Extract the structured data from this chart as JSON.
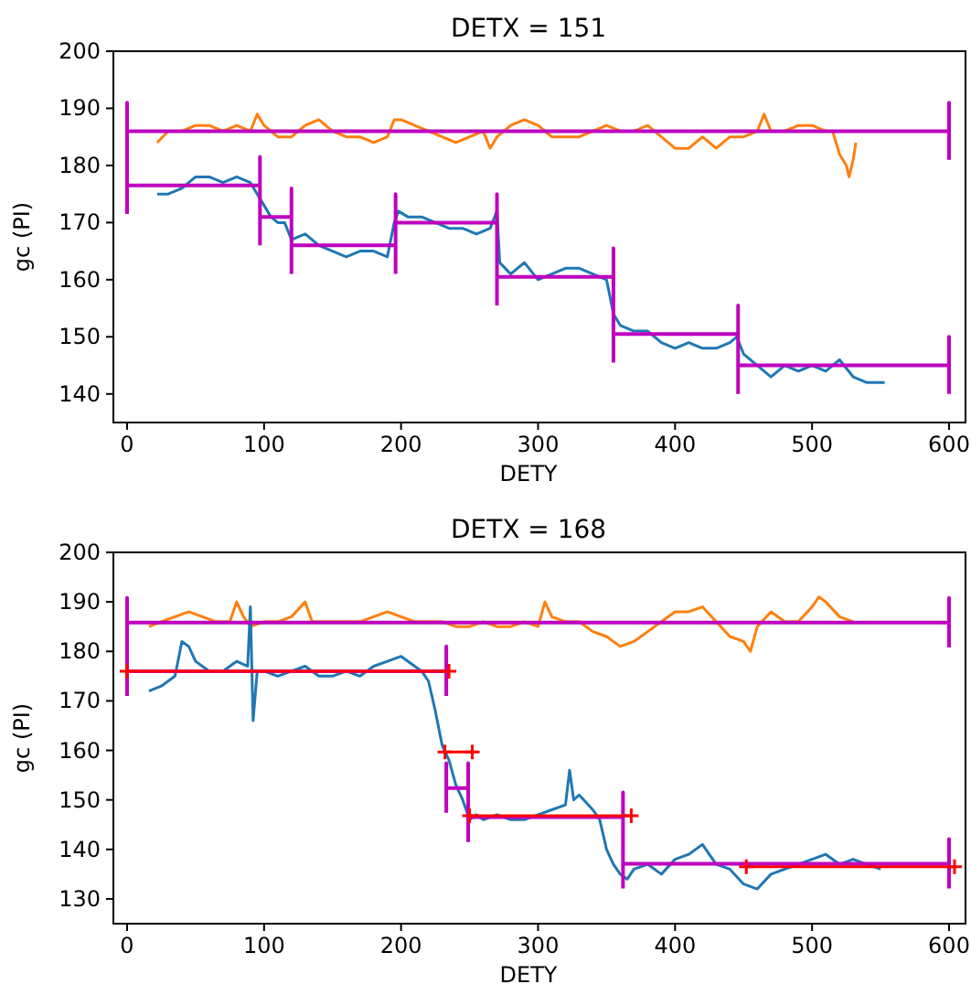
{
  "chart_data": [
    {
      "type": "line",
      "title": "DETX = 151",
      "xlabel": "DETY",
      "ylabel": "gc (PI)",
      "xlim": [
        -10,
        612
      ],
      "ylim": [
        135,
        200
      ],
      "xticks": [
        0,
        100,
        200,
        300,
        400,
        500,
        600
      ],
      "yticks": [
        140,
        150,
        160,
        170,
        180,
        190,
        200
      ],
      "marker": "none",
      "series": [
        {
          "color": "#ff7f0e",
          "x": [
            22,
            30,
            40,
            50,
            60,
            70,
            80,
            90,
            95,
            100,
            110,
            120,
            130,
            140,
            150,
            160,
            170,
            180,
            190,
            195,
            200,
            210,
            220,
            230,
            240,
            250,
            260,
            265,
            270,
            280,
            290,
            300,
            310,
            320,
            330,
            340,
            350,
            360,
            370,
            380,
            390,
            400,
            410,
            420,
            430,
            440,
            450,
            460,
            465,
            470,
            480,
            490,
            500,
            510,
            515,
            520,
            525,
            527,
            530,
            532
          ],
          "values": [
            184,
            186,
            186,
            187,
            187,
            186,
            187,
            186,
            189,
            187,
            185,
            185,
            187,
            188,
            186,
            185,
            185,
            184,
            185,
            188,
            188,
            187,
            186,
            185,
            184,
            185,
            186,
            183,
            185,
            187,
            188,
            187,
            185,
            185,
            185,
            186,
            187,
            186,
            186,
            187,
            185,
            183,
            183,
            185,
            183,
            185,
            185,
            186,
            189,
            186,
            186,
            187,
            187,
            186,
            186,
            182,
            180,
            178,
            181,
            184
          ]
        },
        {
          "color": "#1f77b4",
          "x": [
            22,
            30,
            40,
            50,
            60,
            70,
            80,
            90,
            95,
            100,
            105,
            110,
            115,
            120,
            130,
            140,
            150,
            160,
            170,
            180,
            190,
            195,
            198,
            205,
            215,
            225,
            235,
            245,
            255,
            265,
            270,
            272,
            280,
            290,
            300,
            310,
            320,
            330,
            340,
            350,
            355,
            360,
            370,
            380,
            390,
            400,
            410,
            420,
            430,
            440,
            445,
            450,
            460,
            470,
            480,
            490,
            500,
            510,
            520,
            530,
            540,
            553
          ],
          "values": [
            175,
            175,
            176,
            178,
            178,
            177,
            178,
            177,
            175,
            173,
            171,
            170,
            170,
            167,
            168,
            166,
            165,
            164,
            165,
            165,
            164,
            170,
            172,
            171,
            171,
            170,
            169,
            169,
            168,
            169,
            172,
            163,
            161,
            163,
            160,
            161,
            162,
            162,
            161,
            160,
            154,
            152,
            151,
            151,
            149,
            148,
            149,
            148,
            148,
            149,
            150,
            147,
            145,
            143,
            145,
            144,
            145,
            144,
            146,
            143,
            142,
            142
          ]
        },
        {
          "color": "#bf00bf",
          "x": [
            0,
            0,
            0,
            600,
            600,
            600,
            null,
            0,
            0,
            0,
            97,
            97,
            97,
            null,
            97,
            97,
            97,
            120,
            120,
            120,
            null,
            120,
            120,
            120,
            196,
            196,
            196,
            null,
            196,
            196,
            196,
            270,
            270,
            270,
            null,
            270,
            270,
            270,
            355,
            355,
            355,
            null,
            355,
            355,
            355,
            446,
            446,
            446,
            null,
            446,
            446,
            446,
            600,
            600,
            600
          ],
          "values": [
            181,
            191,
            186,
            186,
            191,
            181,
            null,
            171.5,
            181.5,
            176.5,
            176.5,
            181.5,
            171.5,
            null,
            166,
            176,
            171,
            171,
            176,
            166,
            null,
            161,
            171,
            166,
            166,
            171,
            161,
            null,
            165,
            175,
            170,
            170,
            175,
            165,
            null,
            155.5,
            165.5,
            160.5,
            160.5,
            165.5,
            155.5,
            null,
            145.5,
            155.5,
            150.5,
            150.5,
            155.5,
            145.5,
            null,
            140,
            150,
            145,
            145,
            150,
            140
          ]
        }
      ]
    },
    {
      "type": "line",
      "title": "DETX = 168",
      "xlabel": "DETY",
      "ylabel": "gc (PI)",
      "xlim": [
        -10,
        612
      ],
      "ylim": [
        125,
        200
      ],
      "xticks": [
        0,
        100,
        200,
        300,
        400,
        500,
        600
      ],
      "yticks": [
        130,
        140,
        150,
        160,
        170,
        180,
        190,
        200
      ],
      "marker": "none",
      "series": [
        {
          "color": "#ff7f0e",
          "x": [
            16,
            25,
            35,
            45,
            55,
            65,
            75,
            80,
            85,
            90,
            100,
            110,
            120,
            130,
            135,
            140,
            150,
            160,
            170,
            180,
            190,
            200,
            210,
            220,
            230,
            240,
            250,
            260,
            270,
            280,
            290,
            300,
            305,
            310,
            320,
            330,
            340,
            350,
            360,
            370,
            380,
            390,
            400,
            410,
            420,
            430,
            440,
            450,
            455,
            460,
            470,
            480,
            490,
            500,
            505,
            510,
            520,
            530
          ],
          "values": [
            185,
            186,
            187,
            188,
            187,
            186,
            186,
            190,
            187,
            185,
            186,
            186,
            187,
            190,
            186,
            186,
            186,
            186,
            186,
            187,
            188,
            187,
            186,
            186,
            186,
            185,
            185,
            186,
            185,
            185,
            186,
            185,
            190,
            187,
            186,
            186,
            184,
            183,
            181,
            182,
            184,
            186,
            188,
            188,
            189,
            186,
            183,
            182,
            180,
            185,
            188,
            186,
            186,
            189,
            191,
            190,
            187,
            186
          ]
        },
        {
          "color": "#1f77b4",
          "x": [
            16,
            25,
            35,
            40,
            45,
            50,
            60,
            70,
            80,
            88,
            90,
            92,
            95,
            100,
            110,
            120,
            130,
            140,
            150,
            160,
            170,
            180,
            190,
            200,
            210,
            215,
            220,
            225,
            230,
            235,
            240,
            245,
            250,
            255,
            260,
            270,
            280,
            290,
            300,
            310,
            320,
            323,
            326,
            330,
            340,
            345,
            350,
            355,
            360,
            365,
            370,
            380,
            390,
            400,
            410,
            420,
            430,
            440,
            450,
            460,
            470,
            480,
            490,
            500,
            510,
            520,
            530,
            540,
            550
          ],
          "values": [
            172,
            173,
            175,
            182,
            181,
            178,
            176,
            176,
            178,
            177,
            189,
            166,
            176,
            176,
            175,
            176,
            177,
            175,
            175,
            176,
            175,
            177,
            178,
            179,
            177,
            176,
            174,
            168,
            161,
            158,
            153,
            150,
            146,
            147,
            146,
            147,
            146,
            146,
            147,
            148,
            149,
            156,
            150,
            151,
            148,
            146,
            140,
            137,
            135,
            134,
            136,
            137,
            135,
            138,
            139,
            141,
            137,
            136,
            133,
            132,
            135,
            136,
            137,
            138,
            139,
            137,
            138,
            137,
            136
          ]
        },
        {
          "color": "#bf00bf",
          "x": [
            0,
            0,
            0,
            600,
            600,
            600,
            null,
            0,
            0,
            0,
            233,
            233,
            233,
            null,
            233,
            233,
            233,
            249,
            249,
            249,
            null,
            249,
            249,
            249,
            362,
            362,
            362,
            null,
            362,
            362,
            362,
            600,
            600,
            600
          ],
          "values": [
            180.8,
            190.8,
            185.8,
            185.8,
            190.8,
            180.8,
            null,
            171,
            181,
            176,
            176,
            181,
            171,
            null,
            147.4,
            157.4,
            152.4,
            152.4,
            157.4,
            147.4,
            null,
            141.5,
            151.5,
            146.5,
            146.5,
            151.5,
            141.5,
            null,
            132.1,
            142.1,
            137.1,
            137.1,
            142.1,
            132.1
          ]
        },
        {
          "color": "#ff0000",
          "marker": "cross",
          "x": [
            0,
            235,
            null,
            232,
            252,
            null,
            250,
            368,
            null,
            452,
            604
          ],
          "values": [
            176,
            176,
            null,
            159.7,
            159.7,
            null,
            146.8,
            146.8,
            null,
            136.5,
            136.5
          ]
        }
      ]
    }
  ]
}
